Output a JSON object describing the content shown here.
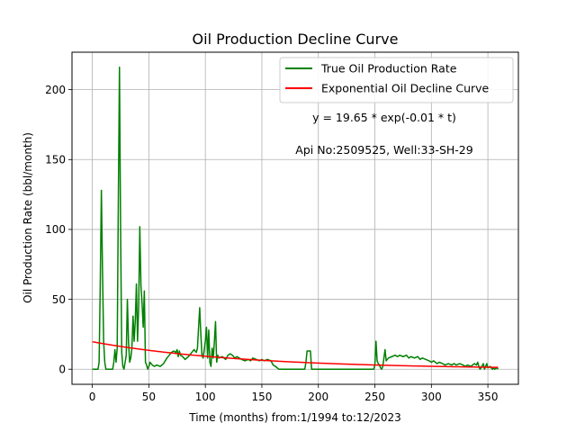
{
  "chart_data": {
    "type": "line",
    "title": "Oil Production Decline Curve",
    "xlabel": "Time (months) from:1/1994 to:12/2023",
    "ylabel": "Oil Production Rate (bbl/month)",
    "xlim": [
      -18,
      377
    ],
    "ylim": [
      -10.8,
      226.8
    ],
    "x_ticks": [
      0,
      50,
      100,
      150,
      200,
      250,
      300,
      350
    ],
    "y_ticks": [
      0,
      50,
      100,
      150,
      200
    ],
    "grid": true,
    "legend_position": "top-right",
    "annotations": [
      "y = 19.65 * exp(-0.01 * t)",
      "Api No:2509525, Well:33-SH-29"
    ],
    "series": [
      {
        "name": "True Oil Production Rate",
        "color": "#008000",
        "points": [
          [
            0,
            0
          ],
          [
            5,
            0
          ],
          [
            6,
            5
          ],
          [
            7,
            60
          ],
          [
            8,
            128
          ],
          [
            9,
            70
          ],
          [
            10,
            20
          ],
          [
            11,
            5
          ],
          [
            12,
            0
          ],
          [
            14,
            0
          ],
          [
            17,
            0
          ],
          [
            18,
            0
          ],
          [
            19,
            5
          ],
          [
            20,
            14
          ],
          [
            21,
            5
          ],
          [
            22,
            15
          ],
          [
            23,
            120
          ],
          [
            24,
            216
          ],
          [
            25,
            100
          ],
          [
            26,
            12
          ],
          [
            27,
            2
          ],
          [
            28,
            0
          ],
          [
            29,
            5
          ],
          [
            30,
            10
          ],
          [
            31,
            50
          ],
          [
            32,
            20
          ],
          [
            33,
            5
          ],
          [
            34,
            8
          ],
          [
            35,
            15
          ],
          [
            36,
            38
          ],
          [
            37,
            20
          ],
          [
            38,
            35
          ],
          [
            39,
            61
          ],
          [
            40,
            20
          ],
          [
            41,
            45
          ],
          [
            42,
            102
          ],
          [
            43,
            60
          ],
          [
            44,
            47
          ],
          [
            45,
            30
          ],
          [
            46,
            56
          ],
          [
            47,
            5
          ],
          [
            48,
            3
          ],
          [
            49,
            0
          ],
          [
            50,
            2
          ],
          [
            51,
            5
          ],
          [
            52,
            4
          ],
          [
            53,
            3
          ],
          [
            55,
            2
          ],
          [
            57,
            3
          ],
          [
            60,
            2
          ],
          [
            63,
            4
          ],
          [
            66,
            8
          ],
          [
            68,
            10
          ],
          [
            70,
            12
          ],
          [
            72,
            13
          ],
          [
            74,
            12
          ],
          [
            75,
            14
          ],
          [
            76,
            9
          ],
          [
            77,
            13
          ],
          [
            78,
            10
          ],
          [
            80,
            9
          ],
          [
            82,
            7
          ],
          [
            85,
            9
          ],
          [
            88,
            12
          ],
          [
            90,
            14
          ],
          [
            92,
            12
          ],
          [
            93,
            15
          ],
          [
            94,
            30
          ],
          [
            95,
            44
          ],
          [
            96,
            25
          ],
          [
            97,
            10
          ],
          [
            98,
            8
          ],
          [
            100,
            20
          ],
          [
            101,
            30
          ],
          [
            102,
            8
          ],
          [
            103,
            28
          ],
          [
            104,
            5
          ],
          [
            105,
            2
          ],
          [
            106,
            15
          ],
          [
            107,
            8
          ],
          [
            108,
            20
          ],
          [
            109,
            34
          ],
          [
            110,
            5
          ],
          [
            111,
            10
          ],
          [
            112,
            8
          ],
          [
            115,
            9
          ],
          [
            118,
            7
          ],
          [
            120,
            10
          ],
          [
            122,
            11
          ],
          [
            124,
            10
          ],
          [
            126,
            8
          ],
          [
            128,
            9
          ],
          [
            130,
            8
          ],
          [
            132,
            7
          ],
          [
            135,
            6
          ],
          [
            138,
            7
          ],
          [
            140,
            6
          ],
          [
            142,
            8
          ],
          [
            145,
            7
          ],
          [
            148,
            6
          ],
          [
            150,
            7
          ],
          [
            152,
            6
          ],
          [
            155,
            7
          ],
          [
            158,
            6
          ],
          [
            160,
            3
          ],
          [
            162,
            2
          ],
          [
            165,
            0
          ],
          [
            170,
            0
          ],
          [
            175,
            0
          ],
          [
            180,
            0
          ],
          [
            185,
            0
          ],
          [
            188,
            0
          ],
          [
            189,
            5
          ],
          [
            190,
            13
          ],
          [
            193,
            13
          ],
          [
            194,
            0
          ],
          [
            200,
            0
          ],
          [
            210,
            0
          ],
          [
            220,
            0
          ],
          [
            230,
            0
          ],
          [
            240,
            0
          ],
          [
            249,
            0
          ],
          [
            250,
            3
          ],
          [
            251,
            20
          ],
          [
            252,
            6
          ],
          [
            253,
            4
          ],
          [
            254,
            3
          ],
          [
            255,
            1
          ],
          [
            256,
            0
          ],
          [
            257,
            2
          ],
          [
            258,
            8
          ],
          [
            259,
            14
          ],
          [
            260,
            6
          ],
          [
            262,
            8
          ],
          [
            265,
            9
          ],
          [
            268,
            10
          ],
          [
            270,
            9
          ],
          [
            272,
            10
          ],
          [
            275,
            9
          ],
          [
            278,
            10
          ],
          [
            280,
            8
          ],
          [
            282,
            9
          ],
          [
            285,
            8
          ],
          [
            288,
            9
          ],
          [
            290,
            7
          ],
          [
            292,
            8
          ],
          [
            295,
            7
          ],
          [
            298,
            6
          ],
          [
            300,
            5
          ],
          [
            302,
            6
          ],
          [
            305,
            4
          ],
          [
            307,
            5
          ],
          [
            310,
            4
          ],
          [
            312,
            3
          ],
          [
            315,
            4
          ],
          [
            318,
            3
          ],
          [
            320,
            4
          ],
          [
            322,
            3
          ],
          [
            325,
            4
          ],
          [
            328,
            3
          ],
          [
            330,
            2
          ],
          [
            332,
            3
          ],
          [
            335,
            2
          ],
          [
            338,
            4
          ],
          [
            340,
            3
          ],
          [
            341,
            5
          ],
          [
            342,
            2
          ],
          [
            343,
            0
          ],
          [
            344,
            1
          ],
          [
            346,
            4
          ],
          [
            347,
            0
          ],
          [
            348,
            2
          ],
          [
            349,
            4
          ],
          [
            350,
            1
          ],
          [
            352,
            2
          ],
          [
            354,
            0
          ],
          [
            355,
            1
          ],
          [
            356,
            0
          ],
          [
            358,
            1
          ],
          [
            359,
            0
          ]
        ]
      },
      {
        "name": "Exponential Oil Decline Curve",
        "color": "#ff0000",
        "equation": {
          "a": 19.65,
          "b": 0.0075
        },
        "t_range": [
          0,
          359
        ]
      }
    ]
  }
}
